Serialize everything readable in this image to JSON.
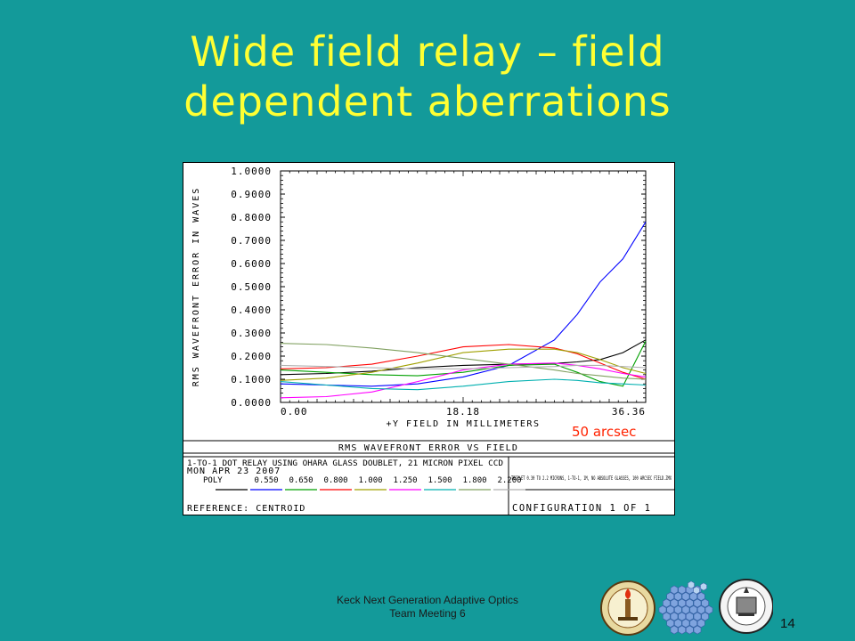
{
  "slide": {
    "title_line1": "Wide field relay – field",
    "title_line2": "dependent aberrations",
    "footer_line1": "Keck Next Generation Adaptive Optics",
    "footer_line2": "Team Meeting 6",
    "page_number": "14",
    "annotation": "50 arcsec"
  },
  "colors": {
    "background": "#139a9a",
    "title": "#ffff33",
    "annotation": "#ff2200"
  },
  "chart_data": {
    "type": "line",
    "ylabel": "RMS WAVEFRONT ERROR IN WAVES",
    "xlabel": "+Y FIELD IN MILLIMETERS",
    "y_ticks": [
      "0.0000",
      "0.1000",
      "0.2000",
      "0.3000",
      "0.4000",
      "0.5000",
      "0.6000",
      "0.7000",
      "0.8000",
      "0.9000",
      "1.0000"
    ],
    "x_ticks": [
      "0.00",
      "18.18",
      "36.36"
    ],
    "xlim": [
      0,
      36.36
    ],
    "ylim": [
      0,
      1.0
    ],
    "grid": false,
    "panel_title": "RMS WAVEFRONT ERROR VS FIELD",
    "description": "1-TO-1 DOT RELAY USING OHARA GLASS DOUBLET, 21 MICRON PIXEL CCD",
    "date": "MON APR 23 2007",
    "legend_label": "POLY",
    "reference": "REFERENCE: CENTROID",
    "note": "TRIPLET 0.30 TO 2.2 MICRONS, 1-TO-1, 1M, NO ABSOLUTE GLASSES, 100 ARCSEC FIELD.ZMX",
    "configuration": "CONFIGURATION 1 OF 1",
    "x": [
      0,
      4.545,
      9.09,
      13.635,
      18.18,
      22.725,
      27.27,
      29.54,
      31.81,
      34.09,
      36.36
    ],
    "series": [
      {
        "name": "POLY",
        "color": "#000000",
        "values": [
          0.12,
          0.125,
          0.135,
          0.15,
          0.16,
          0.165,
          0.168,
          0.175,
          0.185,
          0.215,
          0.27
        ]
      },
      {
        "name": "0.550",
        "color": "#0000ff",
        "values": [
          0.08,
          0.075,
          0.07,
          0.08,
          0.11,
          0.16,
          0.27,
          0.38,
          0.52,
          0.62,
          0.78
        ]
      },
      {
        "name": "0.650",
        "color": "#00a000",
        "values": [
          0.14,
          0.13,
          0.12,
          0.115,
          0.13,
          0.16,
          0.165,
          0.13,
          0.09,
          0.07,
          0.265
        ]
      },
      {
        "name": "0.800",
        "color": "#ff0000",
        "values": [
          0.145,
          0.15,
          0.165,
          0.2,
          0.24,
          0.25,
          0.235,
          0.21,
          0.17,
          0.13,
          0.1
        ]
      },
      {
        "name": "1.000",
        "color": "#a0a000",
        "values": [
          0.095,
          0.105,
          0.13,
          0.17,
          0.215,
          0.23,
          0.23,
          0.215,
          0.185,
          0.15,
          0.125
        ]
      },
      {
        "name": "1.250",
        "color": "#ff00ff",
        "values": [
          0.02,
          0.025,
          0.045,
          0.09,
          0.14,
          0.165,
          0.17,
          0.16,
          0.145,
          0.125,
          0.11
        ]
      },
      {
        "name": "1.500",
        "color": "#00b0b0",
        "values": [
          0.09,
          0.075,
          0.06,
          0.055,
          0.07,
          0.09,
          0.1,
          0.095,
          0.085,
          0.08,
          0.075
        ]
      },
      {
        "name": "1.800",
        "color": "#80a060",
        "values": [
          0.255,
          0.25,
          0.235,
          0.215,
          0.19,
          0.165,
          0.14,
          0.125,
          0.115,
          0.105,
          0.1
        ]
      },
      {
        "name": "2.200",
        "color": "#b0b0b0",
        "values": [
          0.16,
          0.155,
          0.15,
          0.145,
          0.145,
          0.15,
          0.155,
          0.16,
          0.16,
          0.155,
          0.15
        ]
      }
    ]
  }
}
